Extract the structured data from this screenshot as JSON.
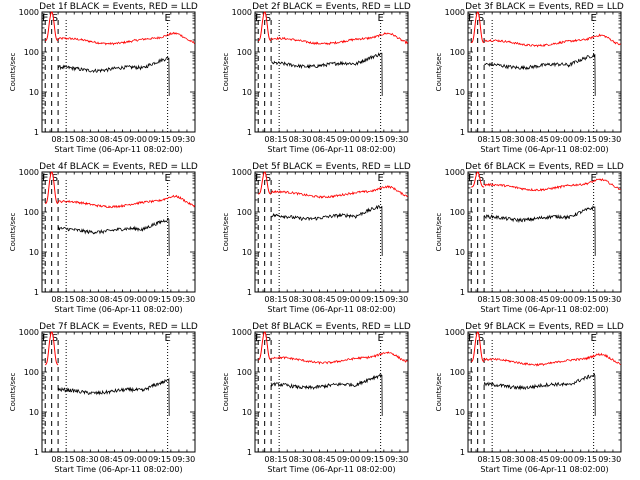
{
  "chart_data": {
    "type": "line",
    "panel_titles": [
      "Det 1f BLACK = Events, RED = LLD",
      "Det 2f BLACK = Events, RED = LLD",
      "Det 3f BLACK = Events, RED = LLD",
      "Det 4f BLACK = Events, RED = LLD",
      "Det 5f BLACK = Events, RED = LLD",
      "Det 6f BLACK = Events, RED = LLD",
      "Det 7f BLACK = Events, RED = LLD",
      "Det 8f BLACK = Events, RED = LLD",
      "Det 9f BLACK = Events, RED = LLD"
    ],
    "ylabel": "Counts/sec",
    "xlabel": "Start Time (06-Apr-11 08:02:00)",
    "x_ticks": [
      "08:15",
      "08:30",
      "08:45",
      "09:00",
      "09:15",
      "09:30"
    ],
    "x_tick_minutes": [
      13,
      28,
      43,
      58,
      73,
      88
    ],
    "xlim_minutes": [
      0,
      95
    ],
    "y_ticks": [
      "1",
      "10",
      "100",
      "1000"
    ],
    "ylim": [
      1,
      1000
    ],
    "y_scale": "log",
    "marker_labels": [
      "E",
      "S",
      "E"
    ],
    "marker_minutes": [
      2,
      8,
      78
    ],
    "dashed_minutes": [
      2,
      6,
      10
    ],
    "dotted_minutes": [
      15,
      78
    ],
    "series_colors": {
      "events": "#000000",
      "lld": "#ff0000"
    },
    "series_start_minute": 10,
    "series_end_minute": 79,
    "panels_params": [
      {
        "red": 190,
        "black": 38,
        "peak": 1000
      },
      {
        "red": 190,
        "black": 48,
        "peak": 1000
      },
      {
        "red": 170,
        "black": 45,
        "peak": 1000
      },
      {
        "red": 160,
        "black": 35,
        "peak": 1000
      },
      {
        "red": 280,
        "black": 75,
        "peak": 1000
      },
      {
        "red": 420,
        "black": 70,
        "peak": 1000
      },
      {
        "red": null,
        "black": 33,
        "peak": 1000
      },
      {
        "red": 200,
        "black": 45,
        "peak": 1000
      },
      {
        "red": 180,
        "black": 45,
        "peak": 1000
      }
    ]
  }
}
